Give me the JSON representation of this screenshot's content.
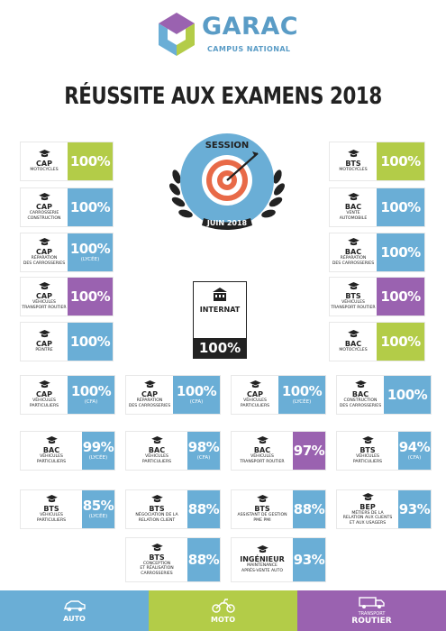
{
  "brand": {
    "name": "GARAC",
    "tagline": "CAMPUS NATIONAL"
  },
  "title": "RÉUSSITE AUX EXAMENS 2018",
  "badge": {
    "line1": "SESSION",
    "line2": "JUIN 2018"
  },
  "internat": {
    "label": "INTERNAT",
    "value": "100%"
  },
  "colors": {
    "auto": "#6aaed6",
    "moto": "#b3cc48",
    "transport": "#9a62b0",
    "dark": "#222222"
  },
  "left_column": [
    {
      "level": "CAP",
      "sub": [
        "MOTOCYCLES"
      ],
      "value": "100%",
      "note": "",
      "color": "moto"
    },
    {
      "level": "CAP",
      "sub": [
        "CARROSSERIE",
        "CONSTRUCTION"
      ],
      "value": "100%",
      "note": "",
      "color": "auto"
    },
    {
      "level": "CAP",
      "sub": [
        "RÉPARATION",
        "DES CARROSSERIES"
      ],
      "value": "100%",
      "note": "(LYCÉE)",
      "color": "auto"
    },
    {
      "level": "CAP",
      "sub": [
        "VÉHICULES",
        "TRANSPORT ROUTIER"
      ],
      "value": "100%",
      "note": "",
      "color": "transport"
    },
    {
      "level": "CAP",
      "sub": [
        "PEINTRE"
      ],
      "value": "100%",
      "note": "",
      "color": "auto"
    }
  ],
  "right_column": [
    {
      "level": "BTS",
      "sub": [
        "MOTOCYCLES"
      ],
      "value": "100%",
      "note": "",
      "color": "moto"
    },
    {
      "level": "BAC",
      "sub": [
        "VENTE",
        "AUTOMOBILE"
      ],
      "value": "100%",
      "note": "",
      "color": "auto"
    },
    {
      "level": "BAC",
      "sub": [
        "RÉPARATION",
        "DES CARROSSERIES"
      ],
      "value": "100%",
      "note": "",
      "color": "auto"
    },
    {
      "level": "BTS",
      "sub": [
        "VÉHICULES",
        "TRANSPORT ROUTIER"
      ],
      "value": "100%",
      "note": "",
      "color": "transport"
    },
    {
      "level": "BAC",
      "sub": [
        "MOTOCYCLES"
      ],
      "value": "100%",
      "note": "",
      "color": "moto"
    }
  ],
  "row1": [
    {
      "level": "CAP",
      "sub": [
        "VÉHICULES",
        "PARTICULIERS"
      ],
      "value": "100%",
      "note": "(CFA)",
      "color": "auto"
    },
    {
      "level": "CAP",
      "sub": [
        "RÉPARATION",
        "DES CARROSSERIES"
      ],
      "value": "100%",
      "note": "(CFA)",
      "color": "auto"
    },
    {
      "level": "CAP",
      "sub": [
        "VÉHICULES",
        "PARTICULIERS"
      ],
      "value": "100%",
      "note": "(LYCÉE)",
      "color": "auto"
    },
    {
      "level": "BAC",
      "sub": [
        "CONSTRUCTION",
        "DES CARROSSERIES"
      ],
      "value": "100%",
      "note": "",
      "color": "auto"
    }
  ],
  "row2": [
    {
      "level": "BAC",
      "sub": [
        "VÉHICULES",
        "PARTICULIERS"
      ],
      "value": "99%",
      "note": "(LYCÉE)",
      "color": "auto"
    },
    {
      "level": "BAC",
      "sub": [
        "VÉHICULES",
        "PARTICULIERS"
      ],
      "value": "98%",
      "note": "(CFA)",
      "color": "auto"
    },
    {
      "level": "BAC",
      "sub": [
        "VÉHICULES",
        "TRANSPORT ROUTIER"
      ],
      "value": "97%",
      "note": "",
      "color": "transport"
    },
    {
      "level": "BTS",
      "sub": [
        "VÉHICULES",
        "PARTICULIERS"
      ],
      "value": "94%",
      "note": "(CFA)",
      "color": "auto"
    }
  ],
  "row3": [
    {
      "level": "BTS",
      "sub": [
        "VÉHICULES",
        "PARTICULIERS"
      ],
      "value": "85%",
      "note": "(LYCÉE)",
      "color": "auto"
    },
    {
      "level": "BTS",
      "sub": [
        "NÉGOCIATION DE LA",
        "RELATION CLIENT"
      ],
      "value": "88%",
      "note": "",
      "color": "auto"
    },
    {
      "level": "BTS",
      "sub": [
        "ASSISTANT DE GESTION",
        "PME PMI"
      ],
      "value": "88%",
      "note": "",
      "color": "auto"
    },
    {
      "level": "BEP",
      "sub": [
        "MÉTIERS DE LA",
        "RELATION AUX CLIENTS",
        "ET AUX USAGERS"
      ],
      "value": "93%",
      "note": "",
      "color": "auto"
    }
  ],
  "row4": [
    {
      "level": "BTS",
      "sub": [
        "CONCEPTION",
        "ET RÉALISATION",
        "CARROSSERIES"
      ],
      "value": "88%",
      "note": "",
      "color": "auto"
    },
    {
      "level": "INGÉNIEUR",
      "sub": [
        "MAINTENANCE",
        "APRÈS-VENTE AUTO"
      ],
      "value": "93%",
      "note": "",
      "color": "auto"
    }
  ],
  "footer": {
    "auto": {
      "label": "AUTO",
      "icon": "car-icon"
    },
    "moto": {
      "label": "MOTO",
      "icon": "motorcycle-icon"
    },
    "transport": {
      "label_top": "TRANSPORT",
      "label_bottom": "ROUTIER",
      "icon": "truck-icon"
    }
  }
}
